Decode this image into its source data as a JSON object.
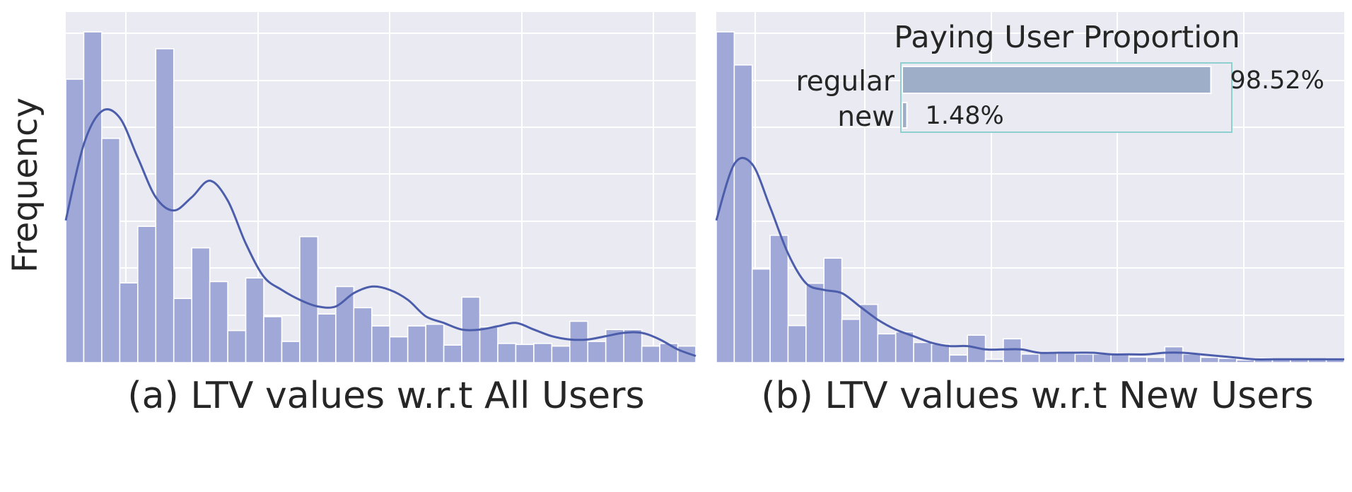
{
  "y_axis_label": "Frequency",
  "colors": {
    "panel_bg": "#eaeaf2",
    "grid": "#ffffff",
    "bar_fill": "#9fa8d6",
    "kde_line": "#4c5eab",
    "inset_bar": "#9eadc8",
    "inset_border": "#8ecfcf",
    "text": "#262626"
  },
  "chart_data": [
    {
      "type": "bar",
      "subtype": "histogram_with_kde",
      "caption": "(a) LTV values w.r.t All Users",
      "ylabel": "Frequency",
      "xlabel": "",
      "ylim": [
        0,
        1.06
      ],
      "grid": true,
      "bins": 35,
      "values": [
        0.857,
        1.0,
        0.678,
        0.241,
        0.412,
        0.949,
        0.194,
        0.347,
        0.245,
        0.097,
        0.256,
        0.139,
        0.064,
        0.381,
        0.147,
        0.23,
        0.166,
        0.111,
        0.078,
        0.111,
        0.116,
        0.053,
        0.198,
        0.108,
        0.058,
        0.055,
        0.058,
        0.05,
        0.125,
        0.064,
        0.1,
        0.1,
        0.05,
        0.058,
        0.05
      ],
      "kde": [
        0.43,
        0.66,
        0.76,
        0.74,
        0.62,
        0.5,
        0.46,
        0.5,
        0.55,
        0.49,
        0.36,
        0.26,
        0.22,
        0.19,
        0.17,
        0.17,
        0.21,
        0.23,
        0.22,
        0.19,
        0.14,
        0.12,
        0.1,
        0.1,
        0.11,
        0.12,
        0.1,
        0.08,
        0.07,
        0.07,
        0.08,
        0.09,
        0.09,
        0.07,
        0.04,
        0.02
      ]
    },
    {
      "type": "bar",
      "subtype": "histogram_with_kde",
      "caption": "(b) LTV values w.r.t New Users",
      "ylabel": "",
      "xlabel": "",
      "ylim": [
        0,
        1.06
      ],
      "grid": true,
      "bins": 35,
      "values": [
        1.0,
        0.9,
        0.283,
        0.385,
        0.112,
        0.24,
        0.316,
        0.131,
        0.176,
        0.087,
        0.093,
        0.061,
        0.056,
        0.023,
        0.083,
        0.01,
        0.072,
        0.026,
        0.033,
        0.028,
        0.026,
        0.026,
        0.026,
        0.017,
        0.016,
        0.048,
        0.026,
        0.016,
        0.013,
        0.008,
        0.013,
        0.01,
        0.01,
        0.01,
        0.013
      ],
      "kde": [
        0.43,
        0.6,
        0.6,
        0.47,
        0.33,
        0.24,
        0.22,
        0.21,
        0.17,
        0.13,
        0.1,
        0.08,
        0.06,
        0.05,
        0.05,
        0.04,
        0.04,
        0.04,
        0.03,
        0.03,
        0.03,
        0.03,
        0.025,
        0.025,
        0.025,
        0.03,
        0.03,
        0.025,
        0.02,
        0.015,
        0.01,
        0.01,
        0.01,
        0.01,
        0.01,
        0.01
      ]
    },
    {
      "type": "bar",
      "orientation": "horizontal",
      "title": "Paying User Proportion",
      "categories": [
        "regular",
        "new"
      ],
      "values": [
        98.52,
        1.48
      ],
      "labels": [
        "98.52%",
        "1.48%"
      ],
      "xlim": [
        0,
        100
      ]
    }
  ]
}
